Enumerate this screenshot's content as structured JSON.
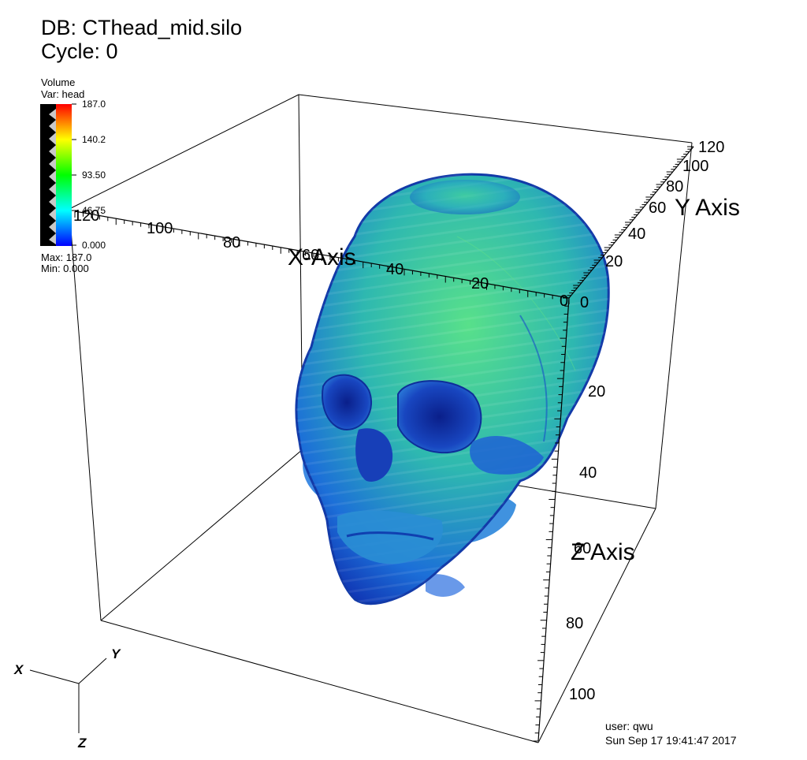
{
  "header": {
    "db_label": "DB: CThead_mid.silo",
    "cycle_label": "Cycle: 0"
  },
  "legend": {
    "plot_type": "Volume",
    "variable": "Var: head",
    "ticks": [
      "187.0",
      "140.2",
      "93.50",
      "46.75",
      "0.000"
    ],
    "max_label": "Max:  187.0",
    "min_label": "Min:  0.000",
    "colormap": [
      "#0000ff",
      "#00ffff",
      "#00ff00",
      "#ffff00",
      "#ff0000"
    ]
  },
  "axes": {
    "x": {
      "title": "X-Axis",
      "ticks": [
        "0",
        "20",
        "40",
        "60",
        "80",
        "100",
        "120"
      ]
    },
    "y": {
      "title": "Y Axis",
      "ticks": [
        "0",
        "20",
        "40",
        "60",
        "80",
        "100",
        "120"
      ]
    },
    "z": {
      "title": "Z Axis",
      "ticks": [
        "0",
        "20",
        "40",
        "60",
        "80",
        "100"
      ]
    }
  },
  "triad": {
    "x": "X",
    "y": "Y",
    "z": "Z"
  },
  "footer": {
    "user": "user: qwu",
    "timestamp": "Sun Sep 17 19:41:47 2017"
  },
  "colors": {
    "bone_dark": "#1448c8",
    "bone_light": "#3ad0a0"
  }
}
